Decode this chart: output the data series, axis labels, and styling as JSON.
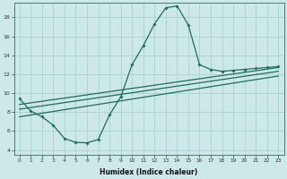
{
  "xlabel": "Humidex (Indice chaleur)",
  "xlim": [
    -0.5,
    23.5
  ],
  "ylim": [
    3.5,
    19.5
  ],
  "xticks": [
    0,
    1,
    2,
    3,
    4,
    5,
    6,
    7,
    8,
    9,
    10,
    11,
    12,
    13,
    14,
    15,
    16,
    17,
    18,
    19,
    20,
    21,
    22,
    23
  ],
  "yticks": [
    4,
    6,
    8,
    10,
    12,
    14,
    16,
    18
  ],
  "bg_color": "#cce8e8",
  "line_color": "#1e6b5e",
  "grid_color": "#b0d4d4",
  "curve1_x": [
    0,
    1,
    2,
    3,
    4,
    5,
    6,
    7,
    8,
    9,
    10,
    11,
    12,
    13,
    14,
    15,
    16,
    17,
    18,
    19,
    20,
    21,
    22,
    23
  ],
  "curve1_y": [
    9.4,
    8.1,
    7.5,
    6.6,
    5.2,
    4.8,
    4.75,
    5.1,
    7.7,
    9.6,
    13.0,
    15.0,
    17.3,
    19.0,
    19.2,
    17.2,
    13.0,
    12.5,
    12.3,
    12.4,
    12.5,
    12.6,
    12.7,
    12.8
  ],
  "line1_x": [
    0,
    23
  ],
  "line1_y": [
    8.3,
    12.3
  ],
  "line2_x": [
    0,
    23
  ],
  "line2_y": [
    7.5,
    11.8
  ],
  "line3_x": [
    0,
    23
  ],
  "line3_y": [
    8.8,
    12.7
  ]
}
